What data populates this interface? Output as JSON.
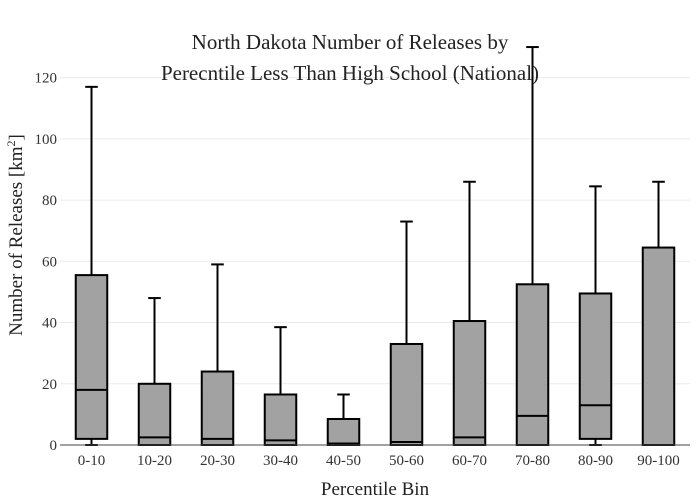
{
  "chart_data": {
    "type": "box",
    "title_lines": [
      "North Dakota Number of Releases by",
      "Perecntile Less Than High School (National)"
    ],
    "xlabel": "Percentile Bin",
    "ylabel_text": "Number of Releases  [km",
    "ylabel_sup": "2",
    "ylabel_close": "]",
    "ylim": [
      0,
      131
    ],
    "yticks": [
      0,
      20,
      40,
      60,
      80,
      100,
      120
    ],
    "grid": true,
    "box_color": "#a2a2a2",
    "categories": [
      "0-10",
      "10-20",
      "20-30",
      "30-40",
      "40-50",
      "50-60",
      "60-70",
      "70-80",
      "80-90",
      "90-100"
    ],
    "boxes": [
      {
        "min": 0,
        "q1": 2,
        "median": 18,
        "q3": 55.5,
        "max": 117
      },
      {
        "min": 0,
        "q1": 0,
        "median": 2.5,
        "q3": 20,
        "max": 48
      },
      {
        "min": 0,
        "q1": 0,
        "median": 2,
        "q3": 24,
        "max": 59
      },
      {
        "min": 0,
        "q1": 0,
        "median": 1.5,
        "q3": 16.5,
        "max": 38.5
      },
      {
        "min": 0,
        "q1": 0,
        "median": 0.5,
        "q3": 8.5,
        "max": 16.5
      },
      {
        "min": 0,
        "q1": 0,
        "median": 1,
        "q3": 33,
        "max": 73
      },
      {
        "min": 0,
        "q1": 0,
        "median": 2.5,
        "q3": 40.5,
        "max": 86
      },
      {
        "min": 0,
        "q1": 0,
        "median": 9.5,
        "q3": 52.5,
        "max": 130
      },
      {
        "min": 0,
        "q1": 2,
        "median": 13,
        "q3": 49.5,
        "max": 84.5
      },
      {
        "min": 0,
        "q1": 0,
        "median": 0,
        "q3": 64.5,
        "max": 86
      }
    ]
  }
}
